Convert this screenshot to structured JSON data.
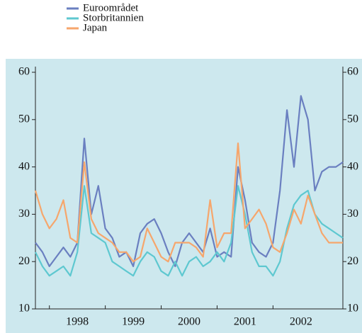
{
  "chart_data": {
    "type": "line",
    "x": [
      1997.75,
      1997.875,
      1998,
      1998.125,
      1998.25,
      1998.375,
      1998.5,
      1998.625,
      1998.75,
      1998.875,
      1999,
      1999.125,
      1999.25,
      1999.375,
      1999.5,
      1999.625,
      1999.75,
      1999.875,
      2000,
      2000.125,
      2000.25,
      2000.375,
      2000.5,
      2000.625,
      2000.75,
      2000.875,
      2001,
      2001.125,
      2001.25,
      2001.375,
      2001.5,
      2001.625,
      2001.75,
      2001.875,
      2002,
      2002.125,
      2002.25,
      2002.375,
      2002.5,
      2002.625,
      2002.75,
      2002.875,
      2003,
      2003.125,
      2003.25
    ],
    "series": [
      {
        "name": "Euroområdet",
        "color": "#6a7fc0",
        "values": [
          24,
          22,
          19,
          21,
          23,
          21,
          24,
          46,
          30,
          36,
          27,
          25,
          21,
          22,
          19,
          26,
          28,
          29,
          26,
          22,
          19,
          24,
          26,
          24,
          22,
          27,
          21,
          22,
          21,
          40,
          33,
          24,
          22,
          21,
          24,
          35,
          52,
          40,
          55,
          50,
          35,
          39,
          40,
          40,
          41
        ]
      },
      {
        "name": "Storbritannien",
        "color": "#5ec8d0",
        "values": [
          22,
          19,
          17,
          18,
          19,
          17,
          22,
          36,
          26,
          25,
          24,
          20,
          19,
          18,
          17,
          20,
          22,
          21,
          18,
          17,
          20,
          17,
          20,
          21,
          19,
          20,
          22,
          20,
          24,
          36,
          30,
          22,
          19,
          19,
          17,
          20,
          27,
          32,
          34,
          35,
          30,
          28,
          27,
          26,
          25
        ]
      },
      {
        "name": "Japan",
        "color": "#f6a66c",
        "values": [
          35,
          30,
          27,
          29,
          33,
          25,
          24,
          41,
          29,
          26,
          25,
          24,
          22,
          22,
          20,
          21,
          27,
          24,
          21,
          20,
          24,
          24,
          24,
          23,
          21,
          33,
          23,
          26,
          26,
          45,
          27,
          29,
          31,
          28,
          23,
          22,
          26,
          31,
          28,
          34,
          30,
          26,
          24,
          24,
          24
        ]
      }
    ],
    "xlim": [
      1997.75,
      2003.25
    ],
    "xticks": [
      {
        "value": 1998,
        "label": "1998"
      },
      {
        "value": 1999,
        "label": "1999"
      },
      {
        "value": 2000,
        "label": "2000"
      },
      {
        "value": 2001,
        "label": "2001"
      },
      {
        "value": 2002,
        "label": "2002"
      }
    ],
    "ylim": [
      10,
      60
    ],
    "yticks": [
      10,
      20,
      30,
      40,
      50,
      60
    ],
    "y2lim": [
      10,
      60
    ],
    "y2ticks": [
      10,
      20,
      30,
      40,
      50,
      60
    ],
    "background": "#cde8ee"
  }
}
